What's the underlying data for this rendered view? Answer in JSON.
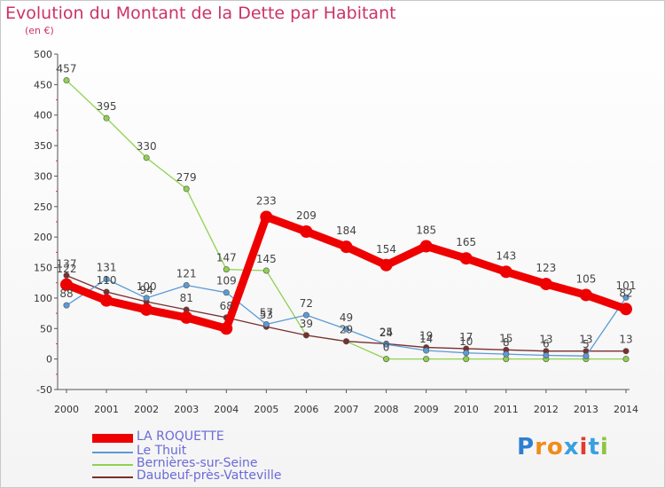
{
  "title": "Evolution du Montant de la Dette par Habitant",
  "unit_label": "(en €)",
  "logo": {
    "text": "Proxiti",
    "letters": [
      "P",
      "r",
      "o",
      "x",
      "i",
      "t",
      "i"
    ],
    "colors": [
      "#2e7fd1",
      "#f08c1a",
      "#f08c1a",
      "#3aa0e0",
      "#e23b2e",
      "#3aa0e0",
      "#8cc63f"
    ]
  },
  "chart_data": {
    "type": "line",
    "x": [
      "2000",
      "2001",
      "2002",
      "2003",
      "2004",
      "2005",
      "2006",
      "2007",
      "2008",
      "2009",
      "2010",
      "2011",
      "2012",
      "2013",
      "2014"
    ],
    "ylim": [
      -50,
      500
    ],
    "yticks": [
      -50,
      0,
      50,
      100,
      150,
      200,
      250,
      300,
      350,
      400,
      450,
      500
    ],
    "grid": false,
    "legend_position": "bottom-left",
    "series": [
      {
        "name": "LA ROQUETTE",
        "color": "#ee0000",
        "values": [
          122,
          96,
          81,
          68,
          50,
          233,
          209,
          184,
          154,
          185,
          165,
          143,
          123,
          105,
          82
        ],
        "labels": [
          "122",
          "",
          "",
          "",
          "",
          "233",
          "209",
          "184",
          "154",
          "185",
          "165",
          "143",
          "123",
          "105",
          "82"
        ]
      },
      {
        "name": "Le Thuit",
        "color": "#5b9bd5",
        "values": [
          88,
          131,
          100,
          121,
          109,
          57,
          72,
          49,
          24,
          14,
          10,
          8,
          6,
          5,
          101
        ],
        "labels": [
          "88",
          "131",
          "100",
          "121",
          "109",
          "57",
          "72",
          "49",
          "24",
          "14",
          "10",
          "8",
          "6",
          "5",
          "101"
        ]
      },
      {
        "name": "Bernières-sur-Seine",
        "color": "#8fd14f",
        "values": [
          457,
          395,
          330,
          279,
          147,
          145,
          39,
          29,
          0,
          0,
          0,
          0,
          0,
          0,
          0
        ],
        "labels": [
          "457",
          "395",
          "330",
          "279",
          "147",
          "145",
          "39",
          "",
          "0",
          "",
          "",
          "",
          "",
          "",
          ""
        ]
      },
      {
        "name": "Daubeuf-près-Vatteville",
        "color": "#7a2e2e",
        "values": [
          137,
          110,
          94,
          81,
          68,
          53,
          39,
          29,
          25,
          19,
          17,
          15,
          13,
          13,
          13
        ],
        "labels": [
          "137",
          "110",
          "94",
          "81",
          "68",
          "53",
          "",
          "29",
          "25",
          "19",
          "17",
          "15",
          "13",
          "13",
          "13"
        ]
      }
    ]
  }
}
